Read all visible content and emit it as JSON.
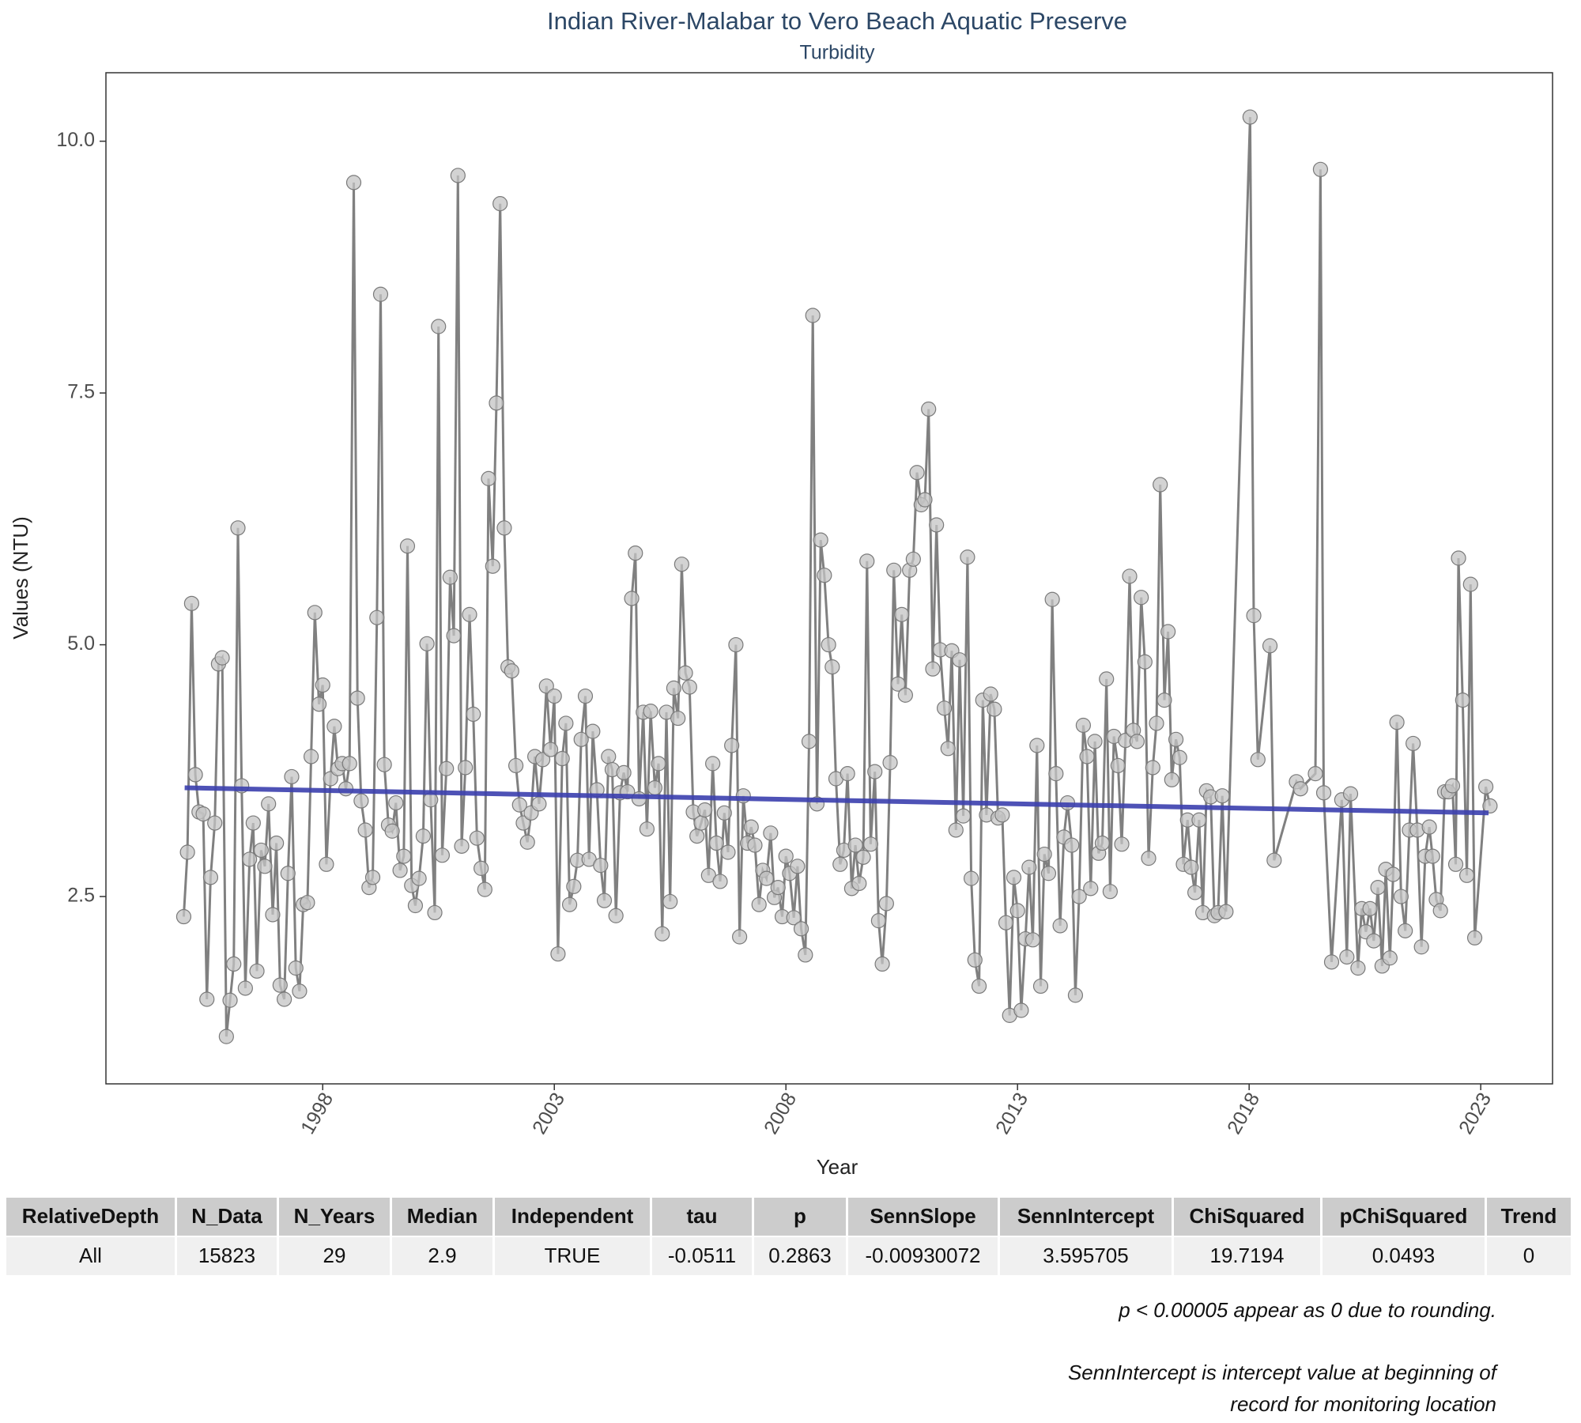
{
  "chart_data": {
    "type": "line",
    "title": "Indian River-Malabar to Vero Beach Aquatic Preserve",
    "subtitle": "Turbidity",
    "x_label": "Year",
    "y_label": "Values (NTU)",
    "xlim": [
      1993.32,
      2024.55
    ],
    "ylim": [
      0.64,
      10.68
    ],
    "xticks": [
      1998,
      2003,
      2008,
      2013,
      2018,
      2023
    ],
    "yticks": [
      2.5,
      {
        "value": 5,
        "label": "5.0"
      },
      7.5,
      {
        "value": 10,
        "label": "10.0"
      }
    ],
    "grid": false,
    "color": "#808080",
    "x": [
      1995,
      1995.08,
      1995.17,
      1995.25,
      1995.33,
      1995.42,
      1995.5,
      1995.58,
      1995.67,
      1995.75,
      1995.83,
      1995.92,
      1996,
      1996.08,
      1996.17,
      1996.25,
      1996.33,
      1996.42,
      1996.5,
      1996.58,
      1996.67,
      1996.75,
      1996.83,
      1996.92,
      1997,
      1997.08,
      1997.17,
      1997.25,
      1997.33,
      1997.42,
      1997.5,
      1997.58,
      1997.67,
      1997.75,
      1997.83,
      1997.92,
      1998,
      1998.08,
      1998.17,
      1998.25,
      1998.33,
      1998.42,
      1998.5,
      1998.58,
      1998.67,
      1998.75,
      1998.83,
      1998.92,
      1999,
      1999.08,
      1999.17,
      1999.25,
      1999.33,
      1999.42,
      1999.5,
      1999.58,
      1999.67,
      1999.75,
      1999.83,
      1999.92,
      2000,
      2000.08,
      2000.17,
      2000.25,
      2000.33,
      2000.42,
      2000.5,
      2000.58,
      2000.67,
      2000.75,
      2000.83,
      2000.92,
      2001,
      2001.08,
      2001.17,
      2001.25,
      2001.33,
      2001.42,
      2001.5,
      2001.58,
      2001.67,
      2001.75,
      2001.83,
      2001.92,
      2002,
      2002.08,
      2002.17,
      2002.25,
      2002.33,
      2002.42,
      2002.5,
      2002.58,
      2002.67,
      2002.75,
      2002.83,
      2002.92,
      2003,
      2003.08,
      2003.17,
      2003.25,
      2003.33,
      2003.42,
      2003.5,
      2003.58,
      2003.67,
      2003.75,
      2003.83,
      2003.92,
      2004,
      2004.08,
      2004.17,
      2004.25,
      2004.33,
      2004.42,
      2004.5,
      2004.58,
      2004.67,
      2004.75,
      2004.83,
      2004.92,
      2005,
      2005.08,
      2005.17,
      2005.25,
      2005.33,
      2005.42,
      2005.5,
      2005.58,
      2005.67,
      2005.75,
      2005.83,
      2005.92,
      2006,
      2006.08,
      2006.17,
      2006.25,
      2006.33,
      2006.42,
      2006.5,
      2006.58,
      2006.67,
      2006.75,
      2006.83,
      2006.92,
      2007,
      2007.08,
      2007.17,
      2007.25,
      2007.33,
      2007.42,
      2007.5,
      2007.58,
      2007.67,
      2007.75,
      2007.83,
      2007.92,
      2008,
      2008.08,
      2008.17,
      2008.25,
      2008.33,
      2008.42,
      2008.5,
      2008.58,
      2008.67,
      2008.75,
      2008.83,
      2008.92,
      2009,
      2009.08,
      2009.17,
      2009.25,
      2009.33,
      2009.42,
      2009.5,
      2009.58,
      2009.67,
      2009.75,
      2009.83,
      2009.92,
      2010,
      2010.08,
      2010.17,
      2010.25,
      2010.33,
      2010.42,
      2010.5,
      2010.58,
      2010.67,
      2010.75,
      2010.83,
      2010.92,
      2011,
      2011.08,
      2011.17,
      2011.25,
      2011.33,
      2011.42,
      2011.5,
      2011.58,
      2011.67,
      2011.75,
      2011.83,
      2011.92,
      2012,
      2012.08,
      2012.17,
      2012.25,
      2012.33,
      2012.42,
      2012.5,
      2012.58,
      2012.67,
      2012.75,
      2012.83,
      2012.92,
      2013,
      2013.08,
      2013.17,
      2013.25,
      2013.33,
      2013.42,
      2013.5,
      2013.58,
      2013.67,
      2013.75,
      2013.83,
      2013.92,
      2014,
      2014.08,
      2014.17,
      2014.25,
      2014.33,
      2014.42,
      2014.5,
      2014.58,
      2014.67,
      2014.75,
      2014.83,
      2014.92,
      2015,
      2015.08,
      2015.17,
      2015.25,
      2015.33,
      2015.42,
      2015.5,
      2015.58,
      2015.67,
      2015.75,
      2015.83,
      2015.92,
      2016,
      2016.08,
      2016.17,
      2016.25,
      2016.33,
      2016.42,
      2016.5,
      2016.58,
      2016.67,
      2016.75,
      2016.83,
      2016.92,
      2017,
      2017.08,
      2017.17,
      2017.25,
      2017.33,
      2017.42,
      2017.5,
      2018.02,
      2018.1,
      2018.19,
      2018.45,
      2018.54,
      2019.02,
      2019.11,
      2019.43,
      2019.54,
      2019.61,
      2019.78,
      2020,
      2020.11,
      2020.19,
      2020.35,
      2020.43,
      2020.52,
      2020.61,
      2020.69,
      2020.78,
      2020.87,
      2020.95,
      2021.04,
      2021.11,
      2021.19,
      2021.28,
      2021.37,
      2021.46,
      2021.54,
      2021.63,
      2021.72,
      2021.8,
      2021.89,
      2021.96,
      2022.04,
      2022.13,
      2022.22,
      2022.3,
      2022.39,
      2022.46,
      2022.52,
      2022.61,
      2022.7,
      2022.78,
      2022.87,
      2023.11,
      2023.2
    ],
    "values": [
      2.3,
      2.94,
      5.41,
      3.71,
      3.34,
      3.32,
      1.48,
      2.69,
      3.23,
      4.81,
      4.87,
      1.11,
      1.47,
      1.83,
      6.16,
      3.6,
      1.59,
      2.87,
      3.23,
      1.76,
      2.96,
      2.8,
      3.42,
      2.32,
      3.03,
      1.62,
      1.48,
      2.73,
      3.69,
      1.79,
      1.56,
      2.42,
      2.44,
      3.89,
      5.32,
      4.41,
      4.6,
      2.82,
      3.67,
      4.19,
      3.77,
      3.82,
      3.57,
      3.82,
      9.59,
      4.47,
      3.45,
      3.16,
      2.59,
      2.69,
      5.27,
      8.48,
      3.81,
      3.21,
      3.15,
      3.43,
      2.76,
      2.9,
      5.98,
      2.61,
      2.41,
      2.68,
      3.1,
      5.01,
      3.46,
      2.34,
      8.16,
      2.91,
      3.77,
      5.67,
      5.09,
      9.66,
      3.0,
      3.78,
      5.3,
      4.31,
      3.08,
      2.78,
      2.57,
      6.65,
      5.78,
      7.4,
      9.38,
      6.16,
      4.78,
      4.74,
      3.8,
      3.41,
      3.23,
      3.04,
      3.33,
      3.89,
      3.42,
      3.86,
      4.59,
      3.96,
      4.49,
      1.93,
      3.87,
      4.22,
      2.42,
      2.6,
      2.86,
      4.06,
      4.49,
      2.87,
      4.14,
      3.56,
      2.81,
      2.46,
      3.89,
      3.76,
      2.31,
      3.53,
      3.73,
      3.54,
      5.46,
      5.91,
      3.47,
      4.33,
      3.17,
      4.34,
      3.58,
      3.82,
      2.13,
      4.33,
      2.45,
      4.57,
      4.27,
      5.8,
      4.72,
      4.58,
      3.34,
      3.1,
      3.23,
      3.36,
      2.71,
      3.82,
      3.03,
      2.65,
      3.33,
      2.94,
      4.0,
      5.0,
      2.1,
      3.5,
      3.03,
      3.19,
      3.01,
      2.42,
      2.76,
      2.68,
      3.13,
      2.49,
      2.59,
      2.3,
      2.9,
      2.73,
      2.29,
      2.8,
      2.18,
      1.92,
      4.04,
      8.27,
      3.42,
      6.04,
      5.69,
      5.0,
      4.78,
      3.67,
      2.82,
      2.96,
      3.72,
      2.58,
      3.01,
      2.63,
      2.89,
      5.83,
      3.02,
      3.74,
      2.26,
      1.83,
      2.43,
      3.83,
      5.74,
      4.61,
      5.3,
      4.5,
      5.74,
      5.85,
      6.71,
      6.39,
      6.44,
      7.34,
      4.76,
      6.19,
      4.95,
      4.37,
      3.97,
      4.94,
      3.16,
      4.85,
      3.3,
      5.87,
      2.68,
      1.87,
      1.61,
      4.45,
      3.31,
      4.51,
      4.36,
      3.28,
      3.31,
      2.24,
      1.32,
      2.69,
      2.36,
      1.37,
      2.08,
      2.79,
      2.07,
      4.0,
      1.61,
      2.92,
      2.73,
      5.45,
      3.72,
      2.21,
      3.09,
      3.43,
      3.01,
      1.52,
      2.5,
      4.2,
      3.89,
      2.58,
      4.04,
      2.93,
      3.03,
      4.66,
      2.55,
      4.09,
      3.8,
      3.02,
      4.05,
      5.68,
      4.15,
      4.04,
      5.47,
      4.83,
      2.88,
      3.78,
      4.22,
      6.59,
      4.45,
      5.13,
      3.66,
      4.06,
      3.88,
      2.82,
      3.26,
      2.79,
      2.54,
      3.26,
      2.34,
      3.55,
      3.49,
      2.31,
      2.34,
      3.5,
      2.35,
      10.24,
      5.29,
      3.86,
      4.99,
      2.86,
      3.64,
      3.57,
      3.72,
      9.72,
      3.53,
      1.85,
      3.46,
      1.9,
      3.52,
      1.79,
      2.38,
      2.15,
      2.38,
      2.06,
      2.59,
      1.81,
      2.77,
      1.89,
      2.72,
      4.23,
      2.5,
      2.16,
      3.16,
      4.02,
      3.16,
      2.0,
      2.9,
      3.19,
      2.9,
      2.47,
      2.36,
      3.54,
      3.54,
      3.6,
      2.82,
      5.86,
      4.45,
      2.71,
      5.6,
      2.09,
      3.59,
      3.4
    ],
    "trend": {
      "x": [
        1995.02,
        2023.17
      ],
      "values": [
        3.58,
        3.33
      ],
      "color": "#3b3fae"
    }
  },
  "table": {
    "header": [
      "RelativeDepth",
      "N_Data",
      "N_Years",
      "Median",
      "Independent",
      "tau",
      "p",
      "SennSlope",
      "SennIntercept",
      "ChiSquared",
      "pChiSquared",
      "Trend"
    ],
    "rows": [
      [
        "All",
        "15823",
        "29",
        "2.9",
        "TRUE",
        "-0.0511",
        "0.2863",
        "-0.00930072",
        "3.595705",
        "19.7194",
        "0.0493",
        "0"
      ]
    ]
  },
  "notes": [
    "p < 0.00005 appear as 0 due to rounding.",
    "SennIntercept is intercept value at beginning of",
    "record for monitoring location"
  ]
}
